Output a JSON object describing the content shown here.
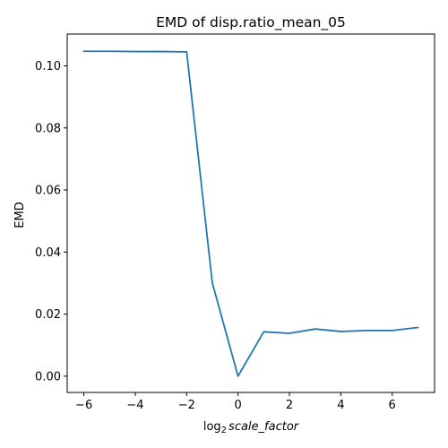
{
  "chart_data": {
    "type": "line",
    "title": "EMD of disp.ratio_mean_05",
    "xlabel_base": "log",
    "xlabel_sub": "2",
    "xlabel_var": "scale_factor",
    "ylabel": "EMD",
    "xlim": [
      -6.65,
      7.65
    ],
    "ylim": [
      -0.00525,
      0.11025
    ],
    "x_ticks": [
      -6,
      -4,
      -2,
      0,
      2,
      4,
      6
    ],
    "x_tick_labels": [
      "−6",
      "−4",
      "−2",
      "0",
      "2",
      "4",
      "6"
    ],
    "y_ticks": [
      0.0,
      0.02,
      0.04,
      0.06,
      0.08,
      0.1
    ],
    "y_tick_labels": [
      "0.00",
      "0.02",
      "0.04",
      "0.06",
      "0.08",
      "0.10"
    ],
    "grid": false,
    "series": [
      {
        "color": "#1f77b4",
        "x": [
          -6,
          -5,
          -4,
          -3,
          -2,
          -1,
          0,
          1,
          2,
          3,
          4,
          5,
          6,
          7
        ],
        "y": [
          0.1047,
          0.1047,
          0.1046,
          0.1046,
          0.1045,
          0.03,
          0.0,
          0.0143,
          0.0138,
          0.0152,
          0.0144,
          0.0147,
          0.0147,
          0.0157
        ]
      }
    ]
  }
}
